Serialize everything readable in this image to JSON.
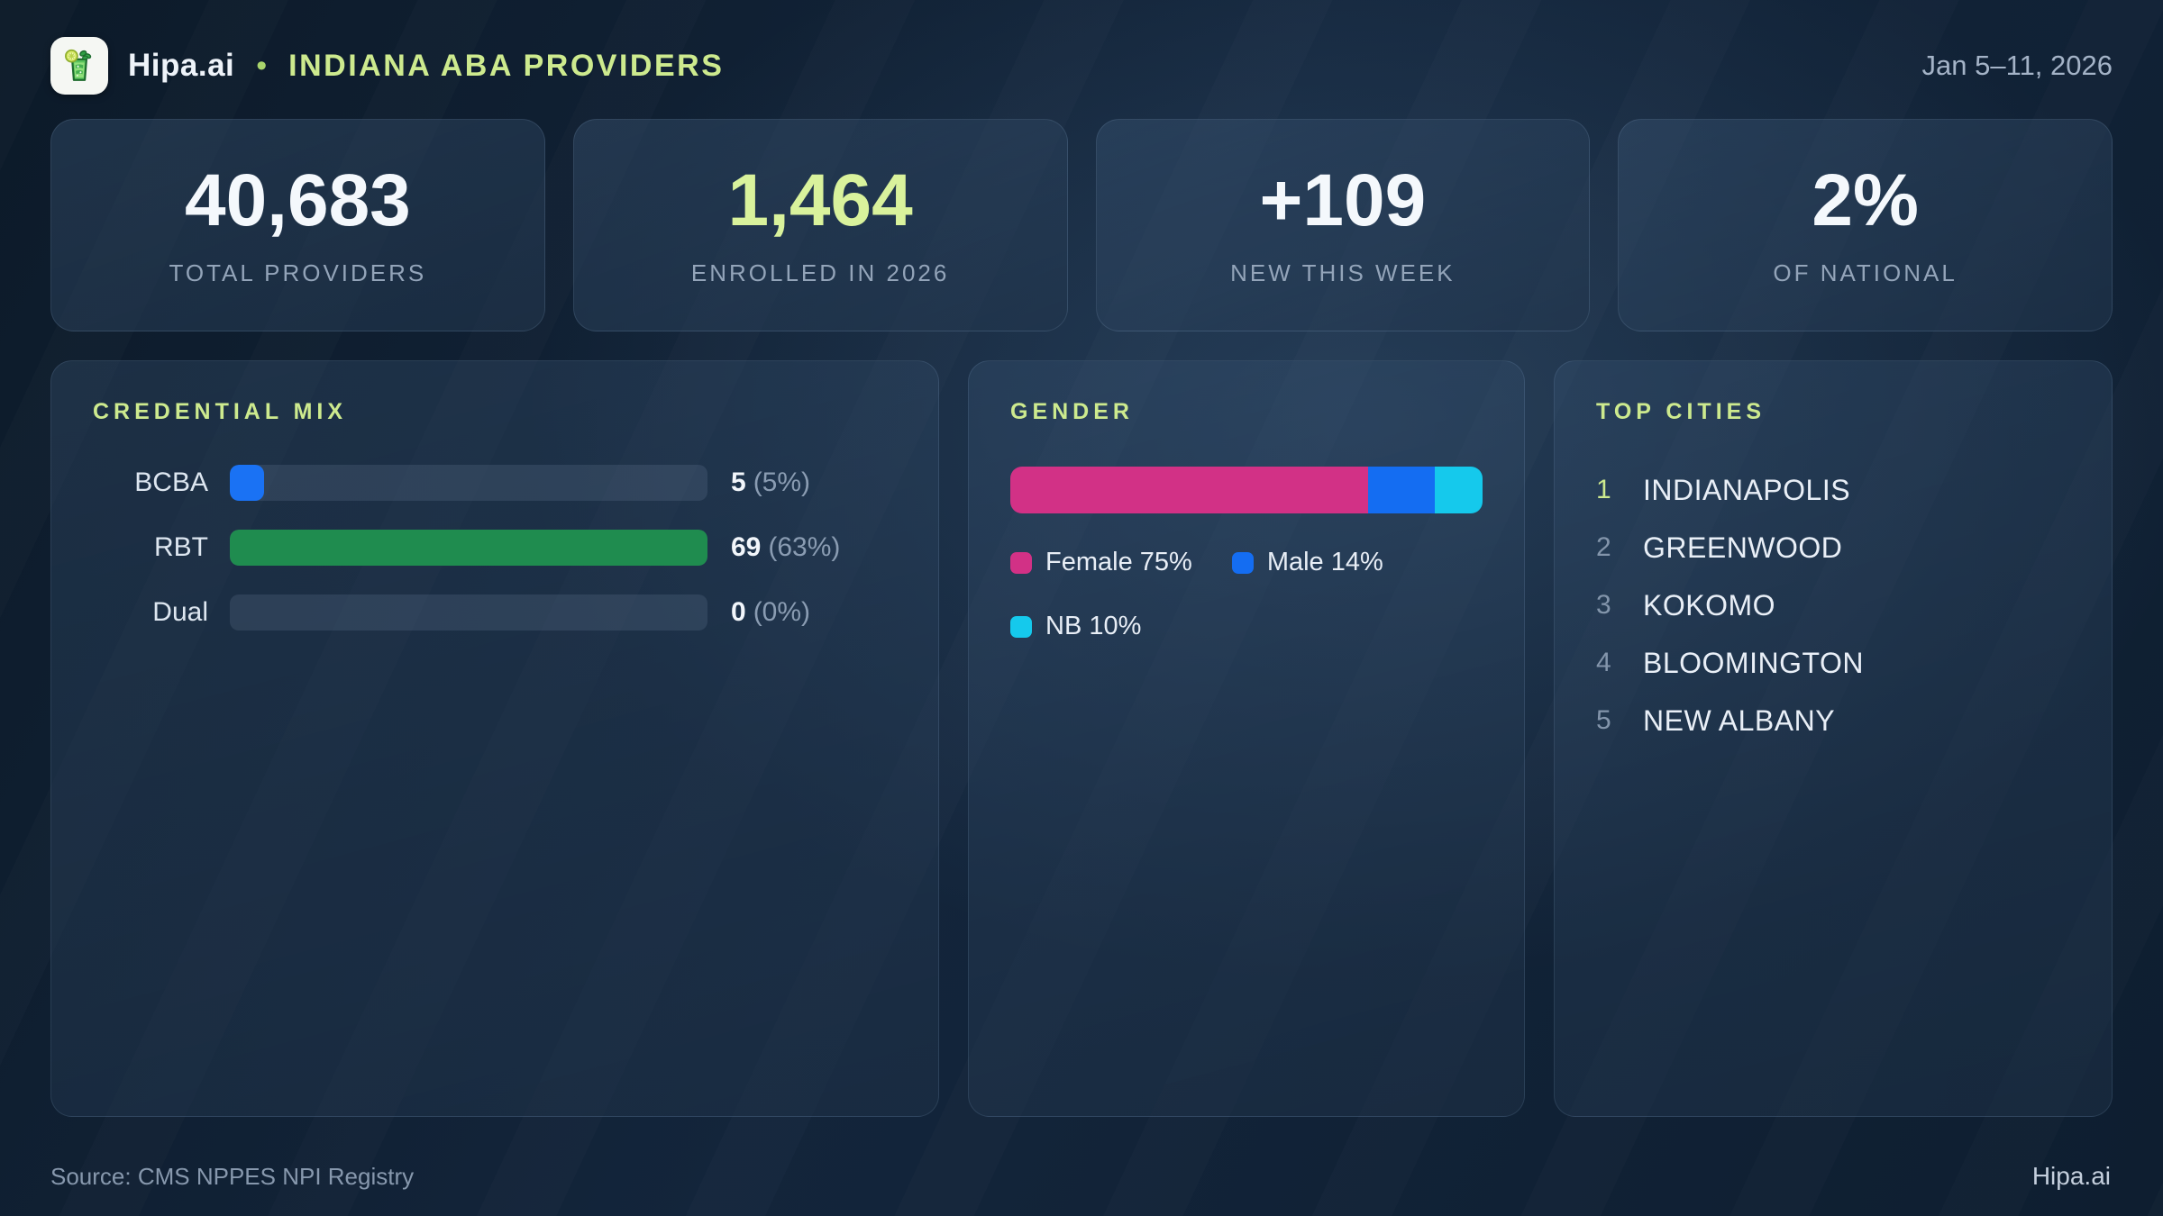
{
  "header": {
    "brand": "Hipa.ai",
    "separator": "•",
    "title": "INDIANA ABA PROVIDERS",
    "date_range": "Jan 5–11, 2026",
    "logo_icon": "mojito-glass-icon"
  },
  "stats": {
    "cards": [
      {
        "value": "40,683",
        "label": "TOTAL PROVIDERS"
      },
      {
        "value": "1,464",
        "label": "ENROLLED IN 2026"
      },
      {
        "value": "+109",
        "label": "NEW THIS WEEK"
      },
      {
        "value": "2%",
        "label": "OF NATIONAL"
      }
    ]
  },
  "panels": {
    "credential_mix": {
      "title": "CREDENTIAL MIX",
      "max_count": 69,
      "rows": [
        {
          "label": "BCBA",
          "count": 5,
          "value_text": "5",
          "pct_text": "(5%)",
          "color": "#1a72f4"
        },
        {
          "label": "RBT",
          "count": 69,
          "value_text": "69",
          "pct_text": "(63%)",
          "color": "#1f8c4f"
        },
        {
          "label": "Dual",
          "count": 0,
          "value_text": "0",
          "pct_text": "(0%)",
          "color": "transparent"
        }
      ]
    },
    "gender": {
      "title": "GENDER",
      "segments": [
        {
          "label": "Female",
          "pct": 75,
          "color": "#d23186",
          "legend": "Female 75%"
        },
        {
          "label": "Male",
          "pct": 14,
          "color": "#146df2",
          "legend": "Male 14%"
        },
        {
          "label": "NB",
          "pct": 10,
          "color": "#15c9ec",
          "legend": "NB 10%"
        }
      ]
    },
    "top_cities": {
      "title": "TOP CITIES",
      "items": [
        {
          "rank": "1",
          "name": "INDIANAPOLIS"
        },
        {
          "rank": "2",
          "name": "GREENWOOD"
        },
        {
          "rank": "3",
          "name": "KOKOMO"
        },
        {
          "rank": "4",
          "name": "BLOOMINGTON"
        },
        {
          "rank": "5",
          "name": "NEW ALBANY"
        }
      ]
    }
  },
  "footer": {
    "source": "Source: CMS NPPES NPI Registry",
    "brand": "Hipa.ai"
  },
  "colors": {
    "accent_green": "#cdea8e",
    "stat_green": "#d9f29c",
    "bar_blue": "#1a72f4",
    "bar_green": "#1f8c4f",
    "gender_pink": "#d23186",
    "gender_blue": "#146df2",
    "gender_cyan": "#15c9ec",
    "bar_track": "rgba(154,178,204,0.14)"
  },
  "chart_data": [
    {
      "type": "bar",
      "orientation": "horizontal",
      "title": "CREDENTIAL MIX",
      "categories": [
        "BCBA",
        "RBT",
        "Dual"
      ],
      "values": [
        5,
        69,
        0
      ],
      "percentages": [
        5,
        63,
        0
      ],
      "value_labels": [
        "5 (5%)",
        "69 (63%)",
        "0 (0%)"
      ],
      "colors": [
        "#1a72f4",
        "#1f8c4f",
        "transparent"
      ],
      "xlim": [
        0,
        69
      ]
    },
    {
      "type": "stacked-bar",
      "title": "GENDER",
      "categories": [
        "Female",
        "Male",
        "NB"
      ],
      "values": [
        75,
        14,
        10
      ],
      "unit": "%",
      "colors": [
        "#d23186",
        "#146df2",
        "#15c9ec"
      ],
      "legend": [
        "Female 75%",
        "Male 14%",
        "NB 10%"
      ],
      "legend_position": "below"
    }
  ]
}
